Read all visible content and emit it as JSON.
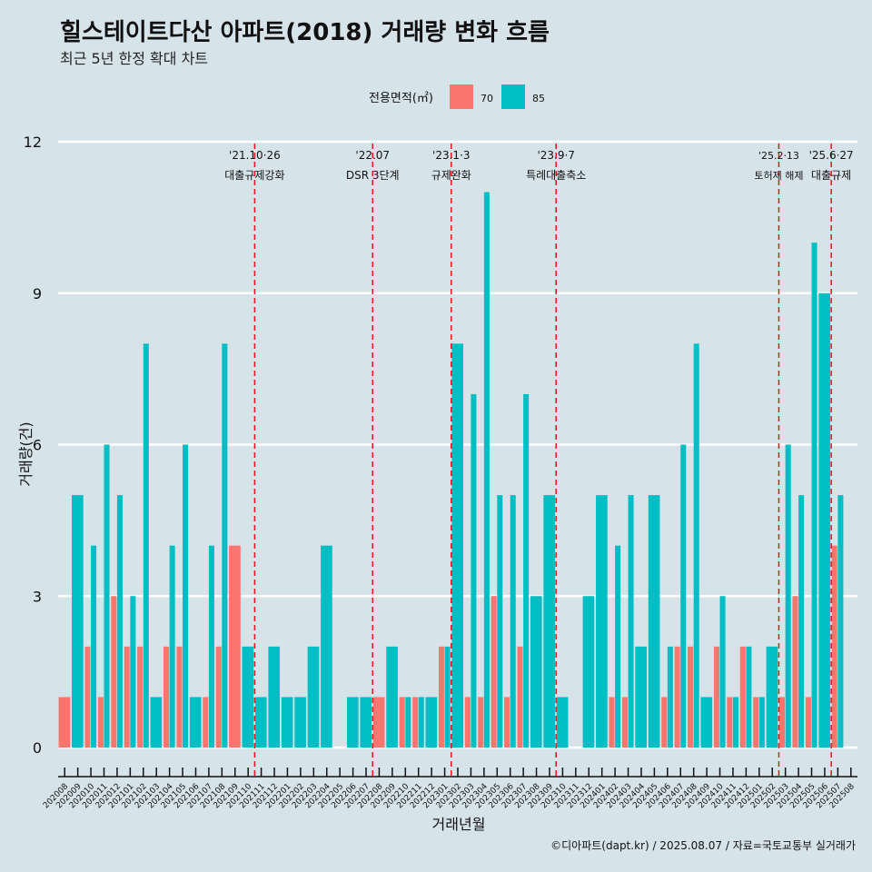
{
  "chart_data": {
    "type": "bar",
    "title": "힐스테이트다산 아파트(2018) 거래량 변화 흐름",
    "subtitle": "최근 5년 한정 확대 차트",
    "xlabel": "거래년월",
    "ylabel": "거래량(건)",
    "ylim": [
      0,
      12
    ],
    "yticks": [
      0,
      3,
      6,
      9,
      12
    ],
    "grid": true,
    "legend": {
      "title": "전용면적(㎡)",
      "position": "top"
    },
    "caption": "©디아파트(dapt.kr) / 2025.08.07 / 자료=국토교통부 실거래가",
    "categories": [
      "202008",
      "202009",
      "202010",
      "202011",
      "202012",
      "202101",
      "202102",
      "202103",
      "202104",
      "202105",
      "202106",
      "202107",
      "202108",
      "202109",
      "202110",
      "202111",
      "202112",
      "202201",
      "202202",
      "202203",
      "202204",
      "202205",
      "202206",
      "202207",
      "202208",
      "202209",
      "202210",
      "202211",
      "202212",
      "202301",
      "202302",
      "202303",
      "202304",
      "202305",
      "202306",
      "202307",
      "202308",
      "202309",
      "202310",
      "202311",
      "202312",
      "202401",
      "202402",
      "202403",
      "202404",
      "202405",
      "202406",
      "202407",
      "202408",
      "202409",
      "202410",
      "202411",
      "202412",
      "202501",
      "202502",
      "202503",
      "202504",
      "202505",
      "202506",
      "202507",
      "202508"
    ],
    "series": [
      {
        "name": "70",
        "color": "#f8766d",
        "values": [
          1,
          0,
          2,
          1,
          3,
          2,
          2,
          0,
          2,
          2,
          0,
          1,
          2,
          4,
          0,
          0,
          0,
          0,
          0,
          0,
          0,
          0,
          0,
          0,
          1,
          0,
          1,
          1,
          0,
          2,
          0,
          1,
          1,
          3,
          1,
          2,
          0,
          0,
          0,
          0,
          0,
          0,
          1,
          1,
          0,
          0,
          1,
          2,
          2,
          0,
          2,
          1,
          2,
          1,
          0,
          1,
          3,
          1,
          0,
          4,
          0
        ]
      },
      {
        "name": "85",
        "color": "#00bfc4",
        "values": [
          0,
          5,
          4,
          6,
          5,
          3,
          8,
          1,
          4,
          6,
          1,
          4,
          8,
          0,
          2,
          1,
          2,
          1,
          1,
          2,
          4,
          0,
          1,
          1,
          0,
          2,
          1,
          1,
          1,
          2,
          8,
          7,
          11,
          5,
          5,
          7,
          3,
          5,
          1,
          0,
          3,
          5,
          4,
          5,
          2,
          5,
          2,
          6,
          8,
          1,
          3,
          1,
          2,
          1,
          2,
          6,
          5,
          10,
          9,
          5,
          0
        ]
      }
    ],
    "events": [
      {
        "after": "202110",
        "date": "'21.10·26",
        "label": "대출규제강화"
      },
      {
        "after": "202207",
        "date": "'22.07",
        "label": "DSR 3단계"
      },
      {
        "after": "202301",
        "date": "'23.1·3",
        "label": "규제완화"
      },
      {
        "after": "202309",
        "date": "'23.9·7",
        "label": "특례대출축소"
      },
      {
        "after": "202502",
        "date": "'25.2·13",
        "label": "토허제 해제"
      },
      {
        "after": "202506",
        "date": "'25.6·27",
        "label": "대출규제"
      }
    ]
  }
}
